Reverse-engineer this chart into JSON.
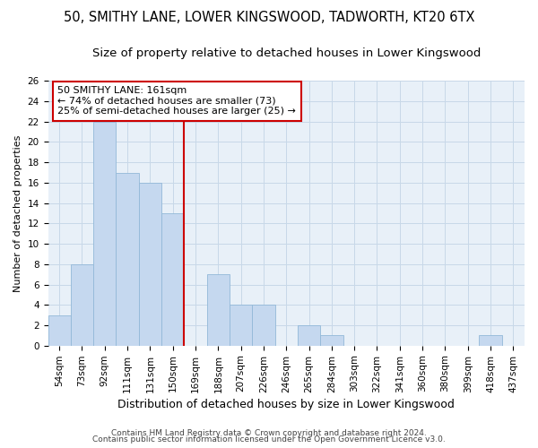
{
  "title1": "50, SMITHY LANE, LOWER KINGSWOOD, TADWORTH, KT20 6TX",
  "title2": "Size of property relative to detached houses in Lower Kingswood",
  "xlabel": "Distribution of detached houses by size in Lower Kingswood",
  "ylabel": "Number of detached properties",
  "categories": [
    "54sqm",
    "73sqm",
    "92sqm",
    "111sqm",
    "131sqm",
    "150sqm",
    "169sqm",
    "188sqm",
    "207sqm",
    "226sqm",
    "246sqm",
    "265sqm",
    "284sqm",
    "303sqm",
    "322sqm",
    "341sqm",
    "360sqm",
    "380sqm",
    "399sqm",
    "418sqm",
    "437sqm"
  ],
  "values": [
    3,
    8,
    22,
    17,
    16,
    13,
    0,
    7,
    4,
    4,
    0,
    2,
    1,
    0,
    0,
    0,
    0,
    0,
    0,
    1,
    0
  ],
  "bar_color": "#c5d8ef",
  "bar_edge_color": "#92b8d8",
  "red_line_x": 5.5,
  "annotation_text": "50 SMITHY LANE: 161sqm\n← 74% of detached houses are smaller (73)\n25% of semi-detached houses are larger (25) →",
  "annotation_box_color": "white",
  "annotation_box_edge_color": "#cc0000",
  "ylim": [
    0,
    26
  ],
  "yticks": [
    0,
    2,
    4,
    6,
    8,
    10,
    12,
    14,
    16,
    18,
    20,
    22,
    24,
    26
  ],
  "footer1": "Contains HM Land Registry data © Crown copyright and database right 2024.",
  "footer2": "Contains public sector information licensed under the Open Government Licence v3.0.",
  "grid_color": "#c8d8e8",
  "background_color": "#e8f0f8",
  "title1_fontsize": 10.5,
  "title2_fontsize": 9.5,
  "xlabel_fontsize": 9,
  "ylabel_fontsize": 8,
  "tick_fontsize": 7.5,
  "annotation_fontsize": 8,
  "footer_fontsize": 6.5,
  "bar_width": 1.0
}
